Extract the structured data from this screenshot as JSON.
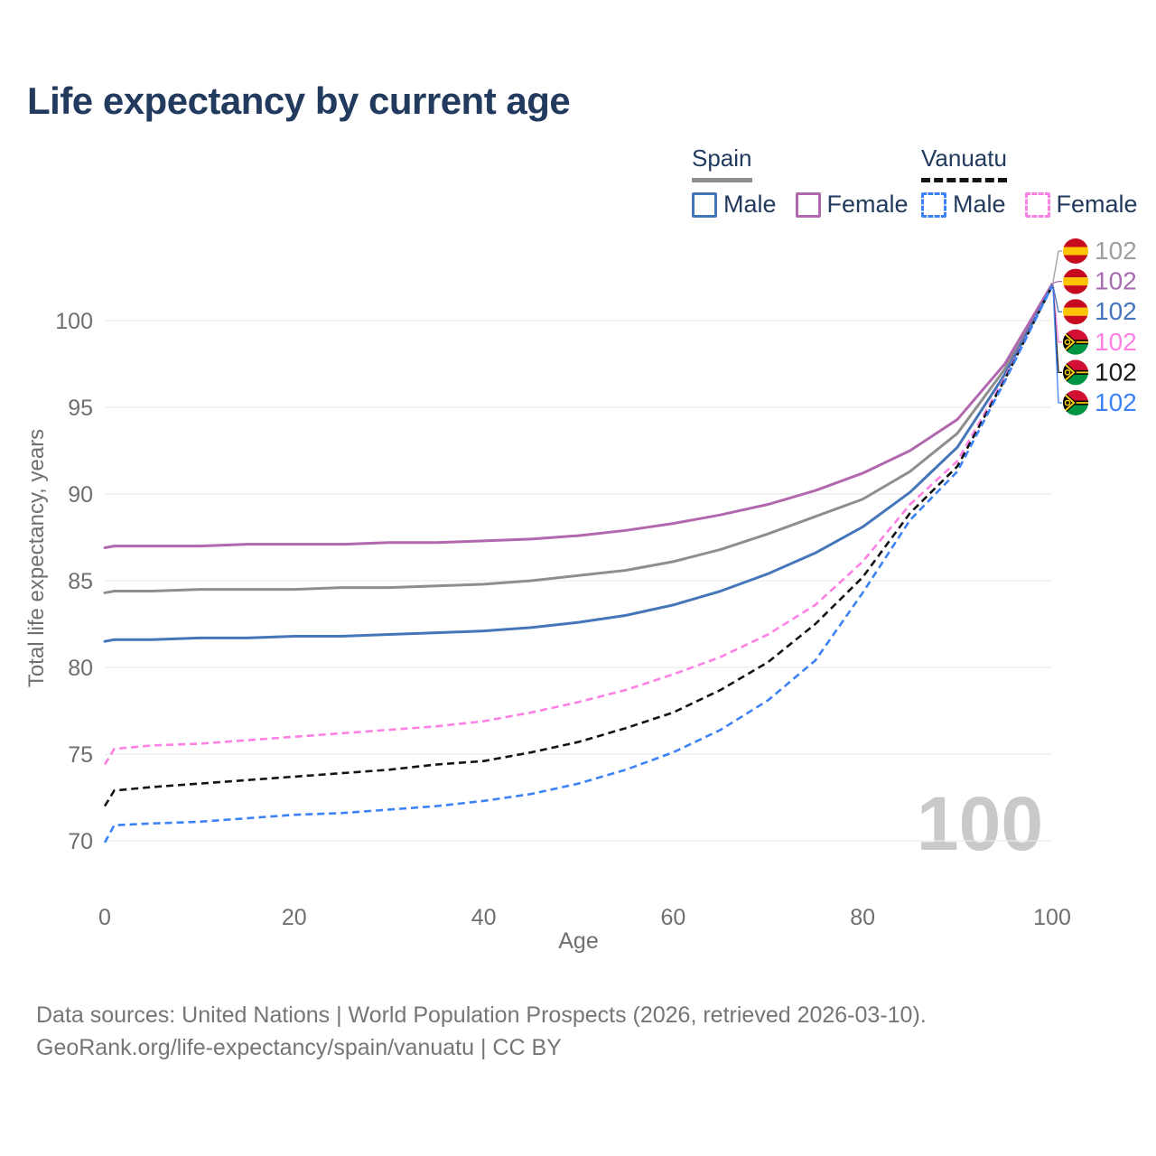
{
  "title": "Life expectancy by current age",
  "colors": {
    "title_text": "#223a5e",
    "axis_text": "#6f6f6f",
    "grid": "#ececec",
    "footer_text": "#757575",
    "watermark": "#c9c9c9"
  },
  "legend": {
    "groups": [
      {
        "label": "Spain",
        "line_style": "solid",
        "line_color": "#8e8e8e",
        "items": [
          {
            "label": "Male",
            "color": "#4676ba",
            "dashed": false
          },
          {
            "label": "Female",
            "color": "#b168ae",
            "dashed": false
          }
        ]
      },
      {
        "label": "Vanuatu",
        "line_style": "dashed",
        "line_color": "#141414",
        "items": [
          {
            "label": "Male",
            "color": "#3b82f6",
            "dashed": true
          },
          {
            "label": "Female",
            "color": "#ff80e5",
            "dashed": true
          }
        ]
      }
    ]
  },
  "chart_data": {
    "type": "line",
    "title": "Life expectancy by current age",
    "xlabel": "Age",
    "ylabel": "Total life expectancy, years",
    "xticks": [
      0,
      20,
      40,
      60,
      80,
      100
    ],
    "yticks": [
      70,
      75,
      80,
      85,
      90,
      95,
      100
    ],
    "xlim": [
      0,
      100
    ],
    "ylim": [
      68.5,
      103.5
    ],
    "grid": true,
    "legend_position": "top-right",
    "watermark": "100",
    "x": [
      0,
      1,
      5,
      10,
      15,
      20,
      25,
      30,
      35,
      40,
      45,
      50,
      55,
      60,
      65,
      70,
      75,
      80,
      85,
      90,
      95,
      100
    ],
    "series": [
      {
        "id": "spain-total",
        "name": "Spain Total",
        "country": "Spain",
        "sex": "Total",
        "color": "#8e8e8e",
        "dashed": false,
        "values": [
          84.3,
          84.4,
          84.4,
          84.5,
          84.5,
          84.5,
          84.6,
          84.6,
          84.7,
          84.8,
          85.0,
          85.3,
          85.6,
          86.1,
          86.8,
          87.7,
          88.7,
          89.7,
          91.3,
          93.5,
          97.2,
          102.1
        ]
      },
      {
        "id": "spain-female",
        "name": "Spain Female",
        "country": "Spain",
        "sex": "Female",
        "color": "#b168ae",
        "dashed": false,
        "values": [
          86.9,
          87.0,
          87.0,
          87.0,
          87.1,
          87.1,
          87.1,
          87.2,
          87.2,
          87.3,
          87.4,
          87.6,
          87.9,
          88.3,
          88.8,
          89.4,
          90.2,
          91.2,
          92.5,
          94.3,
          97.5,
          102.1
        ]
      },
      {
        "id": "spain-male",
        "name": "Spain Male",
        "country": "Spain",
        "sex": "Male",
        "color": "#4676ba",
        "dashed": false,
        "values": [
          81.5,
          81.6,
          81.6,
          81.7,
          81.7,
          81.8,
          81.8,
          81.9,
          82.0,
          82.1,
          82.3,
          82.6,
          83.0,
          83.6,
          84.4,
          85.4,
          86.6,
          88.1,
          90.1,
          92.7,
          96.9,
          102.0
        ]
      },
      {
        "id": "vanuatu-female",
        "name": "Vanuatu Female",
        "country": "Vanuatu",
        "sex": "Female",
        "color": "#ff80e5",
        "dashed": true,
        "values": [
          74.4,
          75.3,
          75.5,
          75.6,
          75.8,
          76.0,
          76.2,
          76.4,
          76.6,
          76.9,
          77.4,
          78.0,
          78.7,
          79.6,
          80.6,
          81.9,
          83.6,
          86.1,
          89.4,
          91.9,
          96.7,
          102.0
        ]
      },
      {
        "id": "vanuatu-total",
        "name": "Vanuatu Total",
        "country": "Vanuatu",
        "sex": "Total",
        "color": "#141414",
        "dashed": true,
        "values": [
          72.0,
          72.9,
          73.1,
          73.3,
          73.5,
          73.7,
          73.9,
          74.1,
          74.4,
          74.6,
          75.1,
          75.7,
          76.5,
          77.4,
          78.7,
          80.3,
          82.5,
          85.2,
          88.9,
          91.6,
          96.6,
          102.0
        ]
      },
      {
        "id": "vanuatu-male",
        "name": "Vanuatu Male",
        "country": "Vanuatu",
        "sex": "Male",
        "color": "#3b82f6",
        "dashed": true,
        "values": [
          69.9,
          70.9,
          71.0,
          71.1,
          71.3,
          71.5,
          71.6,
          71.8,
          72.0,
          72.3,
          72.7,
          73.3,
          74.1,
          75.1,
          76.4,
          78.1,
          80.4,
          84.3,
          88.5,
          91.3,
          96.5,
          102.0
        ]
      }
    ],
    "end_labels": [
      {
        "id": "spain-total-end",
        "series_id": "spain-total",
        "label": "102",
        "color": "#9e9e9e",
        "flag": "spain"
      },
      {
        "id": "spain-female-end",
        "series_id": "spain-female",
        "label": "102",
        "color": "#a76db0",
        "flag": "spain"
      },
      {
        "id": "spain-male-end",
        "series_id": "spain-male",
        "label": "102",
        "color": "#4676ba",
        "flag": "spain"
      },
      {
        "id": "vanuatu-female-end",
        "series_id": "vanuatu-female",
        "label": "102",
        "color": "#ff80e5",
        "flag": "vanuatu"
      },
      {
        "id": "vanuatu-total-end",
        "series_id": "vanuatu-total",
        "label": "102",
        "color": "#1a1a1a",
        "flag": "vanuatu"
      },
      {
        "id": "vanuatu-male-end",
        "series_id": "vanuatu-male",
        "label": "102",
        "color": "#3b82f6",
        "flag": "vanuatu"
      }
    ]
  },
  "flags": {
    "spain": {
      "red": "#c60b1e",
      "yellow": "#ffc400"
    },
    "vanuatu": {
      "red": "#d21034",
      "green": "#009543",
      "black": "#000000",
      "yellow": "#fdce12"
    }
  },
  "footer": {
    "line1": "Data sources: United Nations | World Population Prospects (2026, retrieved 2026-03-10).",
    "line2": "GeoRank.org/life-expectancy/spain/vanuatu | CC BY"
  }
}
